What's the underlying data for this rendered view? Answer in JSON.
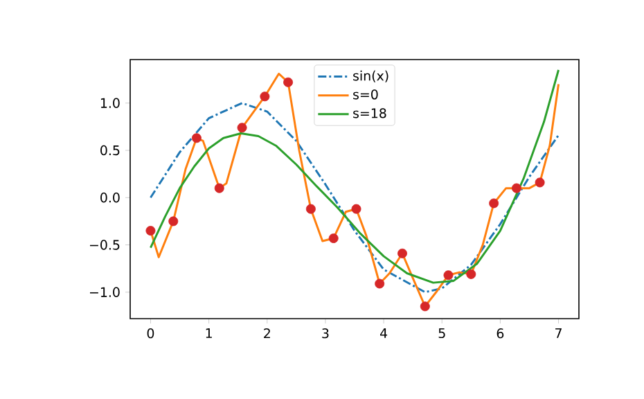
{
  "chart_data": {
    "type": "line",
    "xlim": [
      -0.35,
      7.35
    ],
    "ylim": [
      -1.28,
      1.46
    ],
    "xticks": [
      0,
      1,
      2,
      3,
      4,
      5,
      6,
      7
    ],
    "yticks": [
      {
        "value": -1.0,
        "label": "−1.0"
      },
      {
        "value": -0.5,
        "label": "−0.5"
      },
      {
        "value": 0.0,
        "label": "0.0"
      },
      {
        "value": 0.5,
        "label": "0.5"
      },
      {
        "value": 1.0,
        "label": "1.0"
      }
    ],
    "legend": "top",
    "grid": false,
    "series": [
      {
        "type": "scatter",
        "color": "#d62728",
        "marker": "circle",
        "x": [
          0,
          0.39,
          0.79,
          1.18,
          1.57,
          1.96,
          2.36,
          2.75,
          3.14,
          3.53,
          3.93,
          4.32,
          4.71,
          5.11,
          5.5,
          5.89,
          6.28,
          6.68
        ],
        "values": [
          -0.35,
          -0.25,
          0.63,
          0.1,
          0.74,
          1.07,
          1.22,
          -0.12,
          -0.43,
          -0.12,
          -0.91,
          -0.59,
          -1.15,
          -0.82,
          -0.81,
          -0.06,
          0.1,
          0.16
        ]
      },
      {
        "name": "sin(x)",
        "color": "#1f77b4",
        "line_style": "dashdot",
        "x": [
          0,
          0.5,
          1,
          1.57,
          2,
          2.5,
          3,
          3.5,
          4,
          4.71,
          5,
          5.5,
          6,
          6.5,
          7
        ],
        "values": [
          0,
          0.48,
          0.84,
          1.0,
          0.91,
          0.6,
          0.14,
          -0.35,
          -0.76,
          -1.0,
          -0.96,
          -0.71,
          -0.28,
          0.22,
          0.66
        ]
      },
      {
        "name": "s=0",
        "color": "#ff7f0e",
        "line_style": "solid",
        "x": [
          0,
          0.14,
          0.39,
          0.6,
          0.79,
          0.9,
          1.18,
          1.3,
          1.57,
          1.96,
          2.2,
          2.36,
          2.55,
          2.75,
          2.95,
          3.14,
          3.35,
          3.53,
          3.7,
          3.93,
          4.1,
          4.32,
          4.5,
          4.71,
          4.9,
          5.11,
          5.3,
          5.5,
          5.7,
          5.89,
          6.1,
          6.28,
          6.5,
          6.68,
          6.85,
          7.0
        ],
        "values": [
          -0.35,
          -0.63,
          -0.25,
          0.3,
          0.63,
          0.6,
          0.1,
          0.15,
          0.74,
          1.07,
          1.31,
          1.22,
          0.5,
          -0.12,
          -0.46,
          -0.43,
          -0.15,
          -0.12,
          -0.4,
          -0.91,
          -0.8,
          -0.59,
          -0.85,
          -1.15,
          -1.0,
          -0.82,
          -0.79,
          -0.81,
          -0.5,
          -0.06,
          0.1,
          0.1,
          0.1,
          0.16,
          0.55,
          1.2
        ]
      },
      {
        "name": "s=18",
        "color": "#2ca02c",
        "line_style": "solid",
        "x": [
          0,
          0.25,
          0.5,
          0.75,
          1.0,
          1.25,
          1.55,
          1.85,
          2.15,
          2.5,
          2.85,
          3.2,
          3.6,
          4.0,
          4.4,
          4.85,
          5.2,
          5.6,
          6.0,
          6.4,
          6.75,
          7.0
        ],
        "values": [
          -0.53,
          -0.2,
          0.1,
          0.33,
          0.52,
          0.63,
          0.68,
          0.65,
          0.55,
          0.35,
          0.12,
          -0.1,
          -0.38,
          -0.62,
          -0.8,
          -0.9,
          -0.88,
          -0.7,
          -0.35,
          0.2,
          0.8,
          1.35
        ]
      }
    ]
  }
}
